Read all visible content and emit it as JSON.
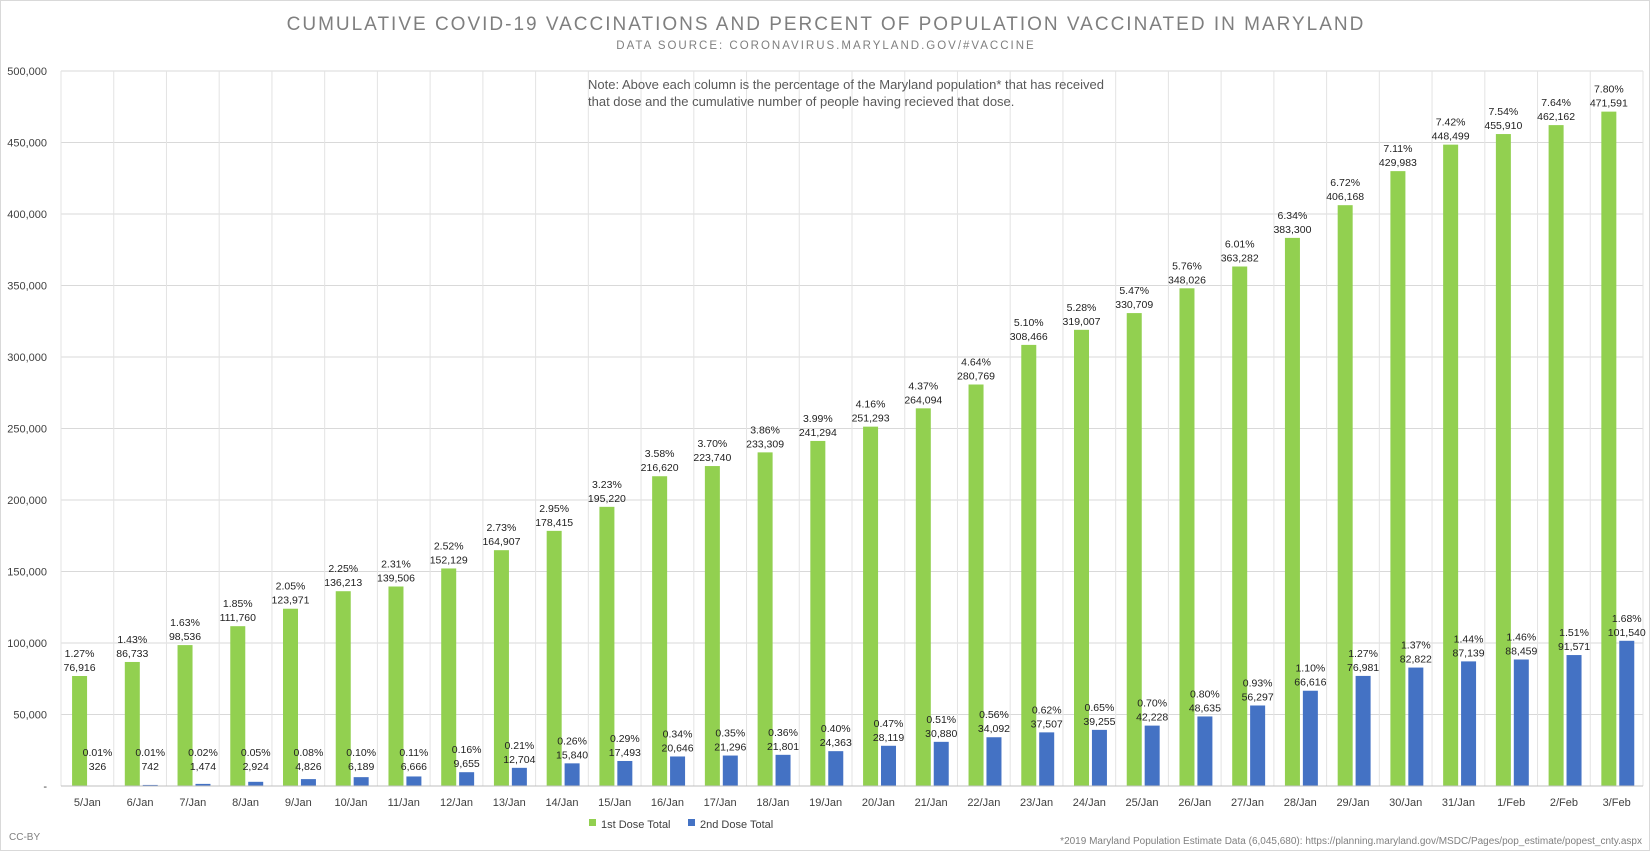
{
  "chart_data": {
    "type": "bar",
    "title": "CUMULATIVE COVID-19 VACCINATIONS AND PERCENT OF POPULATION VACCINATED IN MARYLAND",
    "subtitle": "DATA SOURCE: CORONAVIRUS.MARYLAND.GOV/#VACCINE",
    "note": "Note: Above each column is the percentage of the Maryland population* that has received that dose and the cumulative number of people having recieved that dose.",
    "footnote": "*2019 Maryland Population Estimate Data (6,045,680): https://planning.maryland.gov/MSDC/Pages/pop_estimate/popest_cnty.aspx",
    "license": "CC-BY",
    "ylim": [
      0,
      500000
    ],
    "yticks": [
      {
        "value": 0,
        "label": "-"
      },
      {
        "value": 50000,
        "label": "50,000"
      },
      {
        "value": 100000,
        "label": "100,000"
      },
      {
        "value": 150000,
        "label": "150,000"
      },
      {
        "value": 200000,
        "label": "200,000"
      },
      {
        "value": 250000,
        "label": "250,000"
      },
      {
        "value": 300000,
        "label": "300,000"
      },
      {
        "value": 350000,
        "label": "350,000"
      },
      {
        "value": 400000,
        "label": "400,000"
      },
      {
        "value": 450000,
        "label": "450,000"
      },
      {
        "value": 500000,
        "label": "500,000"
      }
    ],
    "grid": true,
    "legend_position": "bottom",
    "categories": [
      "5/Jan",
      "6/Jan",
      "7/Jan",
      "8/Jan",
      "9/Jan",
      "10/Jan",
      "11/Jan",
      "12/Jan",
      "13/Jan",
      "14/Jan",
      "15/Jan",
      "16/Jan",
      "17/Jan",
      "18/Jan",
      "19/Jan",
      "20/Jan",
      "21/Jan",
      "22/Jan",
      "23/Jan",
      "24/Jan",
      "25/Jan",
      "26/Jan",
      "27/Jan",
      "28/Jan",
      "29/Jan",
      "30/Jan",
      "31/Jan",
      "1/Feb",
      "2/Feb",
      "3/Feb"
    ],
    "series": [
      {
        "name": "1st Dose Total",
        "color": "#92d050",
        "values": [
          76916,
          86733,
          98536,
          111760,
          123971,
          136213,
          139506,
          152129,
          164907,
          178415,
          195220,
          216620,
          223740,
          233309,
          241294,
          251293,
          264094,
          280769,
          308466,
          319007,
          330709,
          348026,
          363282,
          383300,
          406168,
          429983,
          448499,
          455910,
          462162,
          471591
        ],
        "percent_labels": [
          "1.27%",
          "1.43%",
          "1.63%",
          "1.85%",
          "2.05%",
          "2.25%",
          "2.31%",
          "2.52%",
          "2.73%",
          "2.95%",
          "3.23%",
          "3.58%",
          "3.70%",
          "3.86%",
          "3.99%",
          "4.16%",
          "4.37%",
          "4.64%",
          "5.10%",
          "5.28%",
          "5.47%",
          "5.76%",
          "6.01%",
          "6.34%",
          "6.72%",
          "7.11%",
          "7.42%",
          "7.54%",
          "7.64%",
          "7.80%"
        ],
        "value_labels": [
          "76,916",
          "86,733",
          "98,536",
          "111,760",
          "123,971",
          "136,213",
          "139,506",
          "152,129",
          "164,907",
          "178,415",
          "195,220",
          "216,620",
          "223,740",
          "233,309",
          "241,294",
          "251,293",
          "264,094",
          "280,769",
          "308,466",
          "319,007",
          "330,709",
          "348,026",
          "363,282",
          "383,300",
          "406,168",
          "429,983",
          "448,499",
          "455,910",
          "462,162",
          "471,591"
        ]
      },
      {
        "name": "2nd Dose Total",
        "color": "#4472c4",
        "values": [
          326,
          742,
          1474,
          2924,
          4826,
          6189,
          6666,
          9655,
          12704,
          15840,
          17493,
          20646,
          21296,
          21801,
          24363,
          28119,
          30880,
          34092,
          37507,
          39255,
          42228,
          48635,
          56297,
          66616,
          76981,
          82822,
          87139,
          88459,
          91571,
          101540
        ],
        "percent_labels": [
          "0.01%",
          "0.01%",
          "0.02%",
          "0.05%",
          "0.08%",
          "0.10%",
          "0.11%",
          "0.16%",
          "0.21%",
          "0.26%",
          "0.29%",
          "0.34%",
          "0.35%",
          "0.36%",
          "0.40%",
          "0.47%",
          "0.51%",
          "0.56%",
          "0.62%",
          "0.65%",
          "0.70%",
          "0.80%",
          "0.93%",
          "1.10%",
          "1.27%",
          "1.37%",
          "1.44%",
          "1.46%",
          "1.51%",
          "1.68%"
        ],
        "value_labels": [
          "326",
          "742",
          "1,474",
          "2,924",
          "4,826",
          "6,189",
          "6,666",
          "9,655",
          "12,704",
          "15,840",
          "17,493",
          "20,646",
          "21,296",
          "21,801",
          "24,363",
          "28,119",
          "30,880",
          "34,092",
          "37,507",
          "39,255",
          "42,228",
          "48,635",
          "56,297",
          "66,616",
          "76,981",
          "82,822",
          "87,139",
          "88,459",
          "91,571",
          "101,540"
        ]
      }
    ]
  }
}
